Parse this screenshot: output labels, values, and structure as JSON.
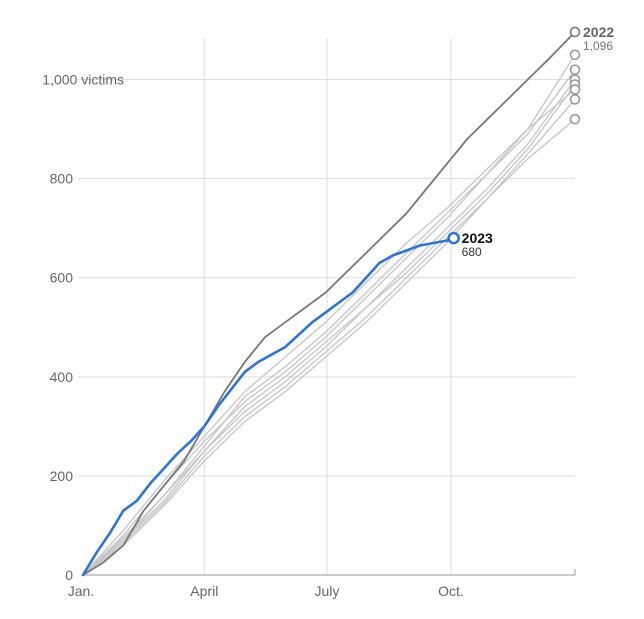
{
  "chart_data": {
    "type": "line",
    "title": "",
    "xlabel": "",
    "ylabel": "",
    "x_domain_days": [
      0,
      365
    ],
    "ylim": [
      0,
      1100
    ],
    "x_ticks": [
      {
        "label": "Jan.",
        "day": 0
      },
      {
        "label": "April",
        "day": 90
      },
      {
        "label": "July",
        "day": 181
      },
      {
        "label": "Oct.",
        "day": 273
      }
    ],
    "y_ticks": [
      {
        "value": 0,
        "label": "0"
      },
      {
        "value": 200,
        "label": "200"
      },
      {
        "value": 400,
        "label": "400"
      },
      {
        "value": 600,
        "label": "600"
      },
      {
        "value": 800,
        "label": "800"
      },
      {
        "value": 1000,
        "label": "1,000 victims"
      }
    ],
    "grid": true,
    "colors": {
      "highlight": "#2b74d9",
      "dark": "#777777",
      "light": "#c8c8c8"
    },
    "series": [
      {
        "name": "2022",
        "style": "dark",
        "end_label": "2022",
        "end_value_label": "1,096",
        "x": [
          0,
          15,
          30,
          45,
          60,
          75,
          90,
          105,
          120,
          135,
          150,
          165,
          180,
          195,
          210,
          225,
          240,
          255,
          270,
          285,
          300,
          315,
          330,
          345,
          365
        ],
        "y": [
          0,
          25,
          60,
          130,
          180,
          230,
          300,
          370,
          430,
          480,
          510,
          540,
          570,
          610,
          650,
          690,
          730,
          780,
          830,
          880,
          920,
          960,
          1000,
          1040,
          1096
        ]
      },
      {
        "name": "2023",
        "style": "highlight",
        "end_label": "2023",
        "end_value_label": "680",
        "x": [
          0,
          10,
          20,
          30,
          40,
          50,
          60,
          70,
          80,
          90,
          100,
          110,
          120,
          130,
          140,
          150,
          160,
          170,
          180,
          190,
          200,
          210,
          220,
          230,
          240,
          250,
          260,
          270,
          275
        ],
        "y": [
          0,
          45,
          85,
          130,
          150,
          185,
          215,
          245,
          270,
          300,
          340,
          375,
          410,
          430,
          445,
          460,
          485,
          510,
          530,
          550,
          570,
          600,
          630,
          645,
          655,
          665,
          670,
          675,
          680
        ]
      },
      {
        "name": "",
        "style": "light",
        "x": [
          0,
          30,
          60,
          90,
          120,
          150,
          180,
          210,
          240,
          270,
          300,
          330,
          365
        ],
        "y": [
          0,
          70,
          160,
          260,
          360,
          420,
          490,
          570,
          650,
          730,
          810,
          900,
          1050
        ]
      },
      {
        "name": "",
        "style": "light",
        "x": [
          0,
          30,
          60,
          90,
          120,
          150,
          180,
          210,
          240,
          270,
          300,
          330,
          365
        ],
        "y": [
          0,
          80,
          180,
          270,
          350,
          410,
          480,
          560,
          640,
          720,
          810,
          890,
          1020
        ]
      },
      {
        "name": "",
        "style": "light",
        "x": [
          0,
          30,
          60,
          90,
          120,
          150,
          180,
          210,
          240,
          270,
          300,
          330,
          365
        ],
        "y": [
          0,
          75,
          160,
          250,
          340,
          400,
          470,
          540,
          620,
          700,
          780,
          870,
          1000
        ]
      },
      {
        "name": "",
        "style": "light",
        "x": [
          0,
          30,
          60,
          90,
          120,
          150,
          180,
          210,
          240,
          270,
          300,
          330,
          365
        ],
        "y": [
          0,
          70,
          150,
          250,
          330,
          390,
          460,
          540,
          610,
          690,
          770,
          860,
          990
        ]
      },
      {
        "name": "",
        "style": "light",
        "x": [
          0,
          30,
          60,
          90,
          120,
          150,
          180,
          210,
          240,
          270,
          300,
          330,
          365
        ],
        "y": [
          0,
          60,
          140,
          230,
          310,
          370,
          440,
          510,
          590,
          670,
          760,
          850,
          960
        ]
      },
      {
        "name": "",
        "style": "light",
        "x": [
          0,
          30,
          60,
          90,
          120,
          150,
          180,
          210,
          240,
          270,
          300,
          330,
          365
        ],
        "y": [
          0,
          90,
          190,
          280,
          370,
          440,
          510,
          590,
          670,
          740,
          820,
          900,
          980
        ]
      },
      {
        "name": "",
        "style": "light",
        "x": [
          0,
          30,
          60,
          90,
          120,
          150,
          180,
          210,
          240,
          270,
          300,
          330,
          365
        ],
        "y": [
          0,
          65,
          145,
          240,
          320,
          380,
          450,
          520,
          600,
          680,
          760,
          840,
          920
        ]
      }
    ]
  }
}
